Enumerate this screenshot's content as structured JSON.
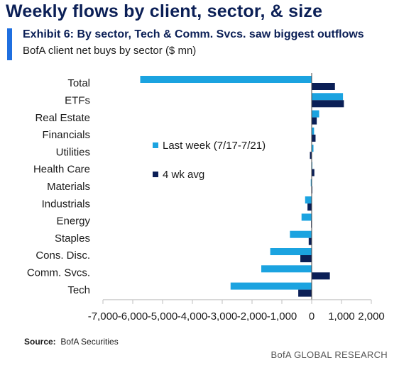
{
  "header": {
    "title": "Weekly flows by client, sector, & size",
    "exhibit": "Exhibit 6: By sector, Tech & Comm. Svcs. saw biggest outflows",
    "subtitle": "BofA client net buys by sector ($ mn)"
  },
  "footer": {
    "source_label": "Source:",
    "source_value": "BofA Securities",
    "brand": "BofA GLOBAL RESEARCH"
  },
  "colors": {
    "last_week": "#1ba3e0",
    "avg_4wk": "#0b1f56",
    "axis": "#bfbfbf"
  },
  "chart_data": {
    "type": "bar",
    "orientation": "horizontal",
    "categories": [
      "Total",
      "ETFs",
      "Real Estate",
      "Financials",
      "Utilities",
      "Health Care",
      "Materials",
      "Industrials",
      "Energy",
      "Staples",
      "Cons. Disc.",
      "Comm. Svcs.",
      "Tech"
    ],
    "series": [
      {
        "name": "Last week (7/17-7/21)",
        "color": "#1ba3e0",
        "values": [
          -5750,
          1050,
          250,
          80,
          60,
          20,
          -30,
          -220,
          -340,
          -730,
          -1390,
          -1690,
          -2720
        ]
      },
      {
        "name": "4 wk avg",
        "color": "#0b1f56",
        "values": [
          780,
          1080,
          170,
          130,
          -60,
          90,
          20,
          -140,
          -20,
          -100,
          -380,
          610,
          -450
        ]
      }
    ],
    "xlim": [
      -7000,
      2000
    ],
    "xticks": [
      "-7,000",
      "-6,000",
      "-5,000",
      "-4,000",
      "-3,000",
      "-2,000",
      "-1,000",
      "0",
      "1,000",
      "2,000"
    ],
    "xtick_values": [
      -7000,
      -6000,
      -5000,
      -4000,
      -3000,
      -2000,
      -1000,
      0,
      1000,
      2000
    ],
    "legend_position": "center",
    "grid": false
  }
}
